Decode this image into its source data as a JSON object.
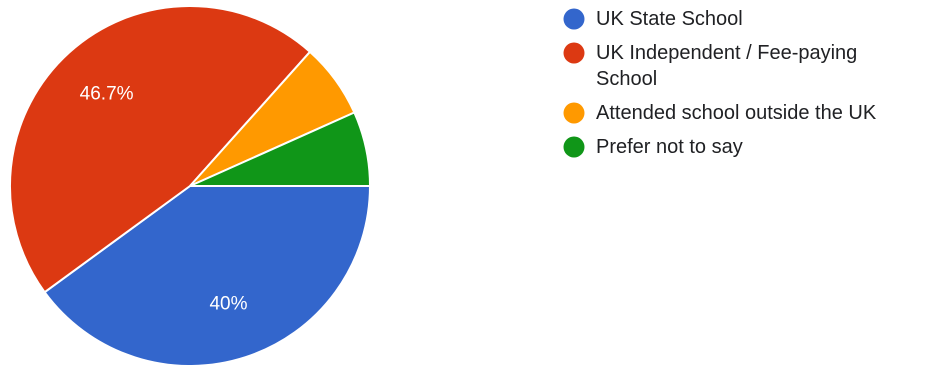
{
  "chart_data": {
    "type": "pie",
    "categories": [
      "UK State School",
      "UK Independent / Fee-paying School",
      "Attended school outside the UK",
      "Prefer not to say"
    ],
    "values": [
      40,
      46.7,
      6.7,
      6.7
    ],
    "unit": "%",
    "data_labels": [
      "40%",
      "46.7%",
      "",
      ""
    ],
    "colors": [
      "#3366cc",
      "#dc3912",
      "#ff9900",
      "#109618"
    ],
    "legend": {
      "position": "right",
      "entries": [
        {
          "lines": [
            "UK State School"
          ],
          "color": "#3366cc"
        },
        {
          "lines": [
            "UK Independent / Fee-paying",
            "School"
          ],
          "color": "#dc3912"
        },
        {
          "lines": [
            "Attended school outside the UK"
          ],
          "color": "#ff9900"
        },
        {
          "lines": [
            "Prefer not to say"
          ],
          "color": "#109618"
        }
      ]
    }
  }
}
